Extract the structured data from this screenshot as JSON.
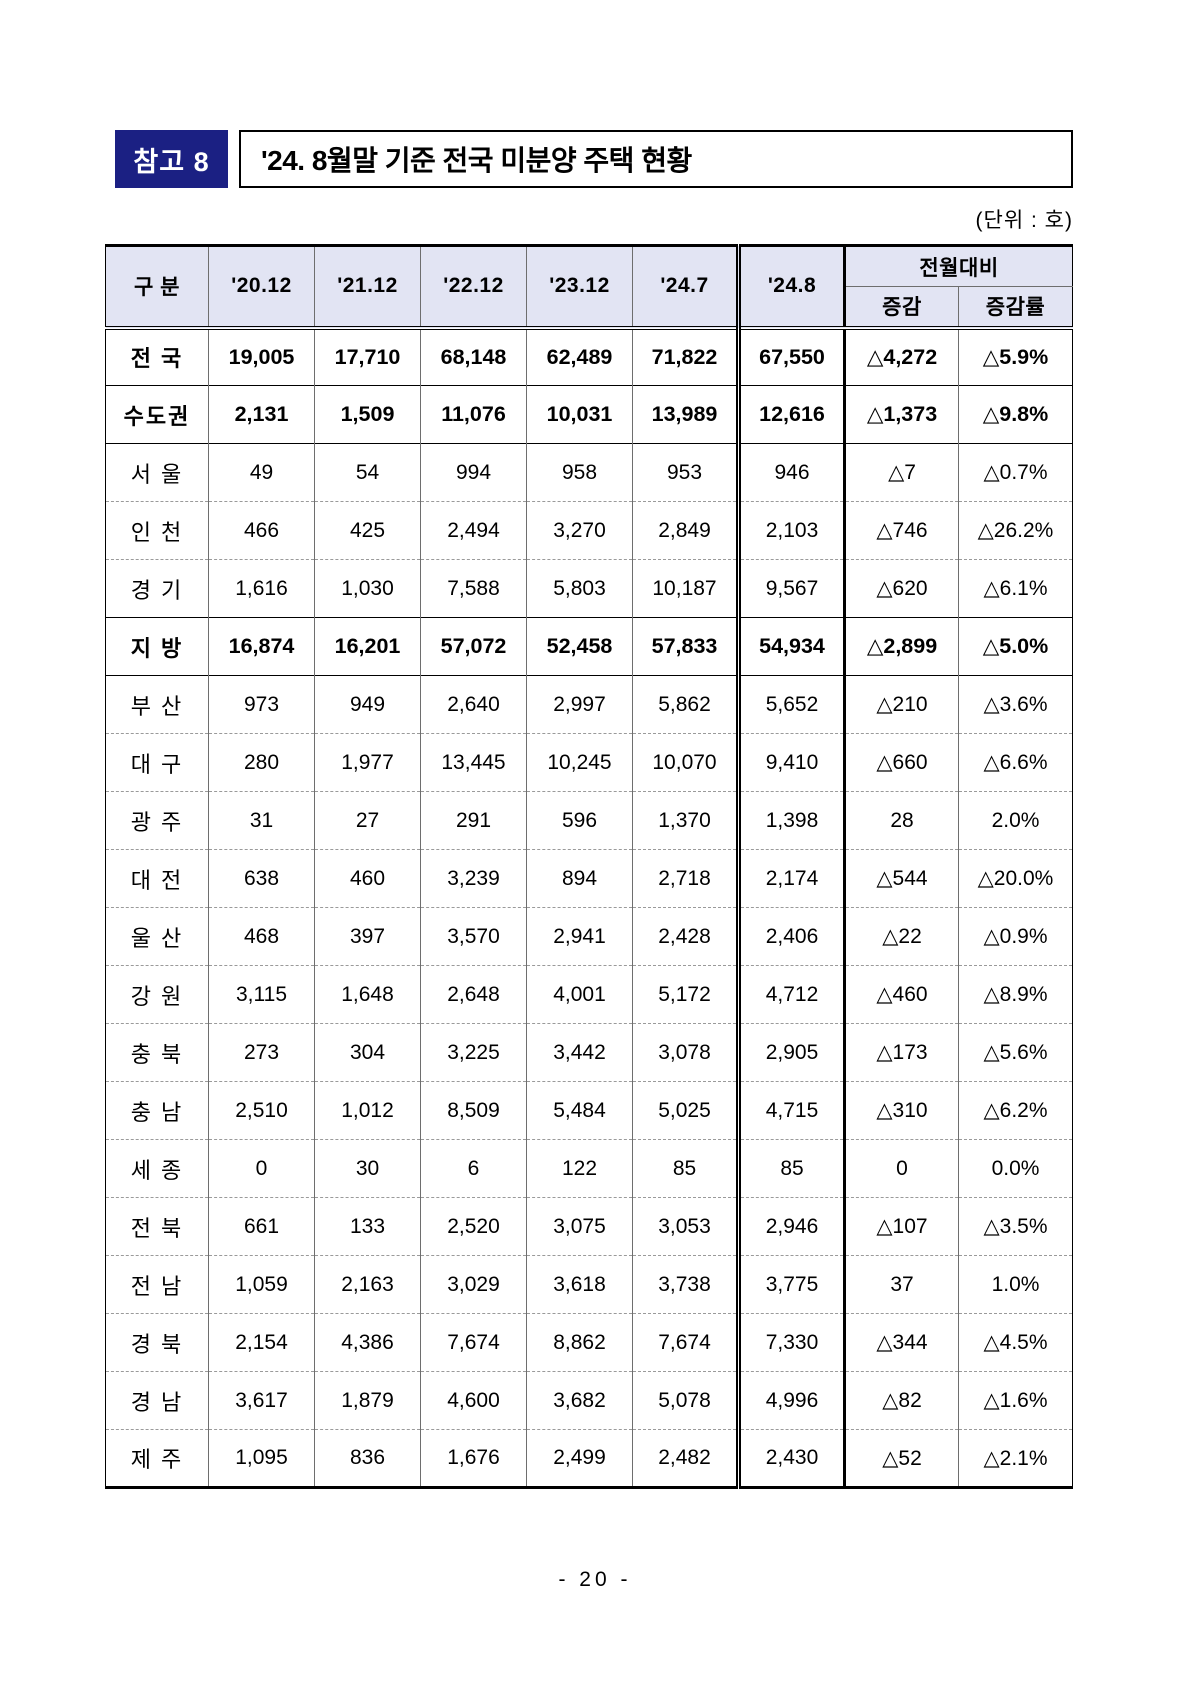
{
  "header": {
    "badge": "참고 8",
    "title": "'24. 8월말 기준 전국 미분양 주택 현황",
    "unit": "(단위 : 호)"
  },
  "table": {
    "row_header_label": "구 분",
    "year_headers": [
      "'20.12",
      "'21.12",
      "'22.12",
      "'23.12",
      "'24.7",
      "'24.8"
    ],
    "mom_header": "전월대비",
    "mom_sub_headers": [
      "증감",
      "증감률"
    ],
    "rows": [
      {
        "label": "전 국",
        "bold": true,
        "sep": "double",
        "values": [
          "19,005",
          "17,710",
          "68,148",
          "62,489",
          "71,822",
          "67,550"
        ],
        "chg": "△4,272",
        "chg_rate": "△5.9%"
      },
      {
        "label": "수도권",
        "bold": true,
        "sep": "solid",
        "values": [
          "2,131",
          "1,509",
          "11,076",
          "10,031",
          "13,989",
          "12,616"
        ],
        "chg": "△1,373",
        "chg_rate": "△9.8%"
      },
      {
        "label": "서 울",
        "bold": false,
        "sep": "solid",
        "values": [
          "49",
          "54",
          "994",
          "958",
          "953",
          "946"
        ],
        "chg": "△7",
        "chg_rate": "△0.7%"
      },
      {
        "label": "인 천",
        "bold": false,
        "sep": "dashed",
        "values": [
          "466",
          "425",
          "2,494",
          "3,270",
          "2,849",
          "2,103"
        ],
        "chg": "△746",
        "chg_rate": "△26.2%"
      },
      {
        "label": "경 기",
        "bold": false,
        "sep": "dashed",
        "values": [
          "1,616",
          "1,030",
          "7,588",
          "5,803",
          "10,187",
          "9,567"
        ],
        "chg": "△620",
        "chg_rate": "△6.1%"
      },
      {
        "label": "지 방",
        "bold": true,
        "sep": "solid",
        "values": [
          "16,874",
          "16,201",
          "57,072",
          "52,458",
          "57,833",
          "54,934"
        ],
        "chg": "△2,899",
        "chg_rate": "△5.0%"
      },
      {
        "label": "부 산",
        "bold": false,
        "sep": "solid",
        "values": [
          "973",
          "949",
          "2,640",
          "2,997",
          "5,862",
          "5,652"
        ],
        "chg": "△210",
        "chg_rate": "△3.6%"
      },
      {
        "label": "대 구",
        "bold": false,
        "sep": "dashed",
        "values": [
          "280",
          "1,977",
          "13,445",
          "10,245",
          "10,070",
          "9,410"
        ],
        "chg": "△660",
        "chg_rate": "△6.6%"
      },
      {
        "label": "광 주",
        "bold": false,
        "sep": "dashed",
        "values": [
          "31",
          "27",
          "291",
          "596",
          "1,370",
          "1,398"
        ],
        "chg": "28",
        "chg_rate": "2.0%"
      },
      {
        "label": "대 전",
        "bold": false,
        "sep": "dashed",
        "values": [
          "638",
          "460",
          "3,239",
          "894",
          "2,718",
          "2,174"
        ],
        "chg": "△544",
        "chg_rate": "△20.0%"
      },
      {
        "label": "울 산",
        "bold": false,
        "sep": "dashed",
        "values": [
          "468",
          "397",
          "3,570",
          "2,941",
          "2,428",
          "2,406"
        ],
        "chg": "△22",
        "chg_rate": "△0.9%"
      },
      {
        "label": "강 원",
        "bold": false,
        "sep": "dashed",
        "values": [
          "3,115",
          "1,648",
          "2,648",
          "4,001",
          "5,172",
          "4,712"
        ],
        "chg": "△460",
        "chg_rate": "△8.9%"
      },
      {
        "label": "충 북",
        "bold": false,
        "sep": "dashed",
        "values": [
          "273",
          "304",
          "3,225",
          "3,442",
          "3,078",
          "2,905"
        ],
        "chg": "△173",
        "chg_rate": "△5.6%"
      },
      {
        "label": "충 남",
        "bold": false,
        "sep": "dashed",
        "values": [
          "2,510",
          "1,012",
          "8,509",
          "5,484",
          "5,025",
          "4,715"
        ],
        "chg": "△310",
        "chg_rate": "△6.2%"
      },
      {
        "label": "세 종",
        "bold": false,
        "sep": "dashed",
        "values": [
          "0",
          "30",
          "6",
          "122",
          "85",
          "85"
        ],
        "chg": "0",
        "chg_rate": "0.0%"
      },
      {
        "label": "전 북",
        "bold": false,
        "sep": "dashed",
        "values": [
          "661",
          "133",
          "2,520",
          "3,075",
          "3,053",
          "2,946"
        ],
        "chg": "△107",
        "chg_rate": "△3.5%"
      },
      {
        "label": "전 남",
        "bold": false,
        "sep": "dashed",
        "values": [
          "1,059",
          "2,163",
          "3,029",
          "3,618",
          "3,738",
          "3,775"
        ],
        "chg": "37",
        "chg_rate": "1.0%"
      },
      {
        "label": "경 북",
        "bold": false,
        "sep": "dashed",
        "values": [
          "2,154",
          "4,386",
          "7,674",
          "8,862",
          "7,674",
          "7,330"
        ],
        "chg": "△344",
        "chg_rate": "△4.5%"
      },
      {
        "label": "경 남",
        "bold": false,
        "sep": "dashed",
        "values": [
          "3,617",
          "1,879",
          "4,600",
          "3,682",
          "5,078",
          "4,996"
        ],
        "chg": "△82",
        "chg_rate": "△1.6%"
      },
      {
        "label": "제 주",
        "bold": false,
        "sep": "dashed",
        "values": [
          "1,095",
          "836",
          "1,676",
          "2,499",
          "2,482",
          "2,430"
        ],
        "chg": "△52",
        "chg_rate": "△2.1%"
      }
    ]
  },
  "footer": {
    "page_number": "- 20 -"
  },
  "colors": {
    "badge_bg": "#1b2083",
    "table_header_bg": "#e2e4f3"
  }
}
